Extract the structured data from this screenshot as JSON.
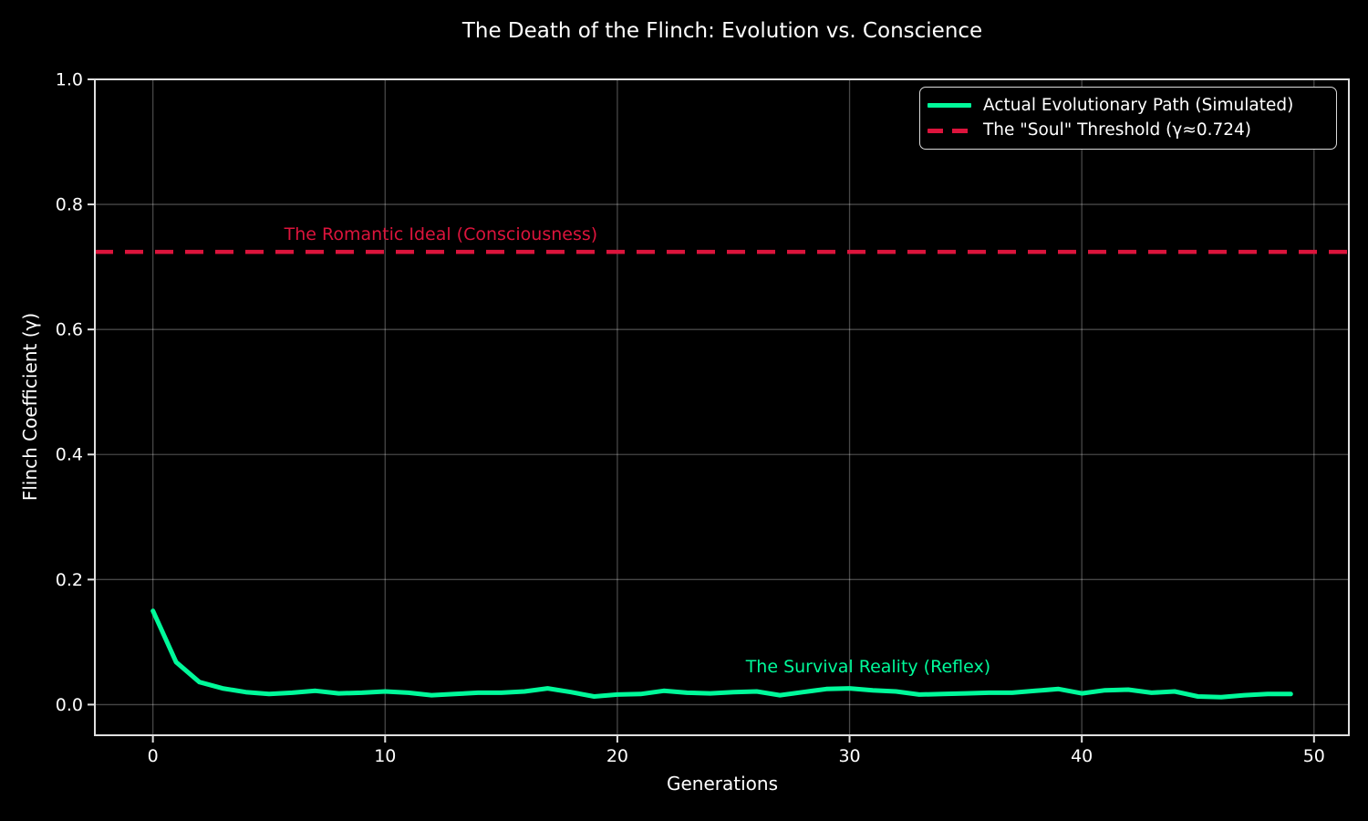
{
  "chart_data": {
    "type": "line",
    "title": "The Death of the Flinch: Evolution vs. Conscience",
    "xlabel": "Generations",
    "ylabel": "Flinch Coefficient (γ)",
    "xlim": [
      -2.5,
      51.5
    ],
    "ylim": [
      -0.049,
      1.0
    ],
    "xticks": [
      0,
      10,
      20,
      30,
      40,
      50
    ],
    "yticks": [
      0.0,
      0.2,
      0.4,
      0.6,
      0.8,
      1.0
    ],
    "grid": true,
    "legend_position": "upper right",
    "colors": {
      "background": "#000000",
      "text": "#ffffff",
      "grid": "rgba(255,255,255,0.28)",
      "spine": "#e0e0e0"
    },
    "series": [
      {
        "name": "Actual Evolutionary Path (Simulated)",
        "color": "#00FA9A",
        "style": "solid",
        "x": [
          0,
          1,
          2,
          3,
          4,
          5,
          6,
          7,
          8,
          9,
          10,
          11,
          12,
          13,
          14,
          15,
          16,
          17,
          18,
          19,
          20,
          21,
          22,
          23,
          24,
          25,
          26,
          27,
          28,
          29,
          30,
          31,
          32,
          33,
          34,
          35,
          36,
          37,
          38,
          39,
          40,
          41,
          42,
          43,
          44,
          45,
          46,
          47,
          48,
          49
        ],
        "values": [
          0.15,
          0.068,
          0.036,
          0.026,
          0.02,
          0.017,
          0.019,
          0.022,
          0.018,
          0.019,
          0.021,
          0.019,
          0.015,
          0.017,
          0.019,
          0.019,
          0.021,
          0.026,
          0.02,
          0.013,
          0.016,
          0.017,
          0.022,
          0.019,
          0.018,
          0.02,
          0.021,
          0.015,
          0.02,
          0.025,
          0.026,
          0.023,
          0.021,
          0.016,
          0.017,
          0.018,
          0.019,
          0.019,
          0.022,
          0.025,
          0.018,
          0.023,
          0.024,
          0.019,
          0.021,
          0.013,
          0.012,
          0.015,
          0.017,
          0.017
        ]
      },
      {
        "name": "The \"Soul\" Threshold (γ≈0.724)",
        "color": "#DC143C",
        "style": "dashed",
        "threshold": 0.724
      }
    ],
    "annotations": [
      {
        "text": "The Romantic Ideal (Consciousness)",
        "color": "#DC143C",
        "x": 12.4,
        "y": 0.752
      },
      {
        "text": "The Survival Reality (Reflex)",
        "color": "#00FA9A",
        "x": 30.8,
        "y": 0.06
      }
    ]
  }
}
